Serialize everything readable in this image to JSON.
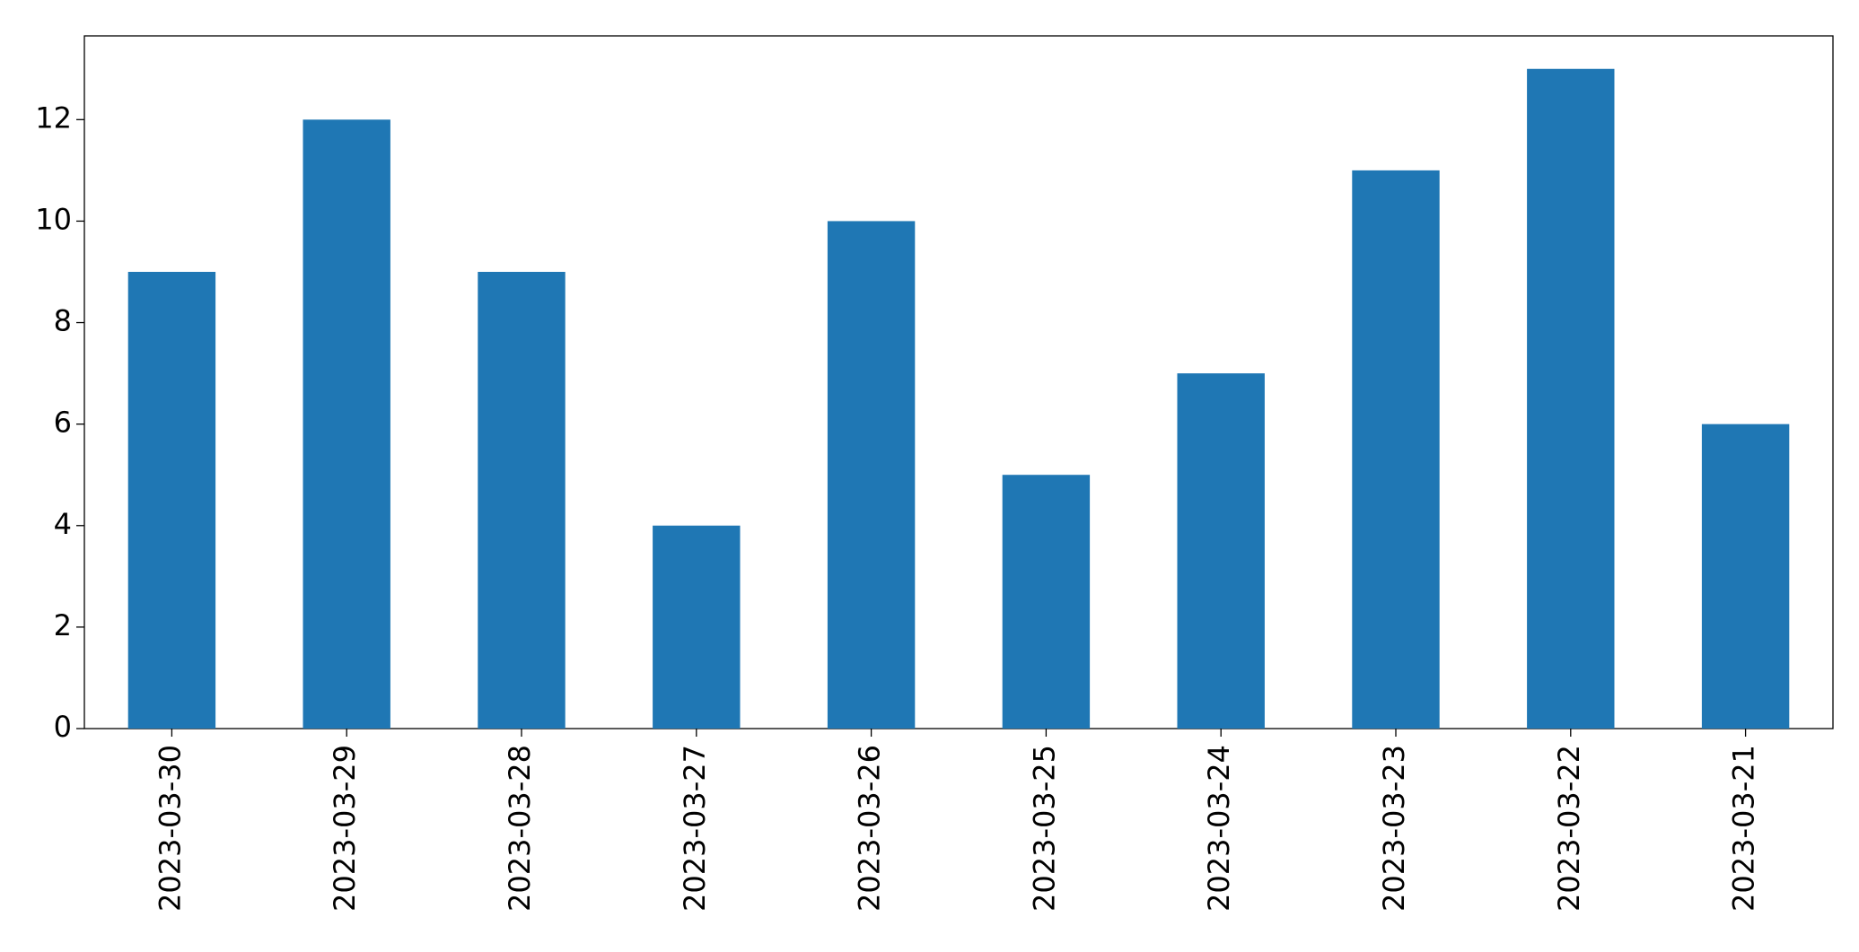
{
  "chart_data": {
    "type": "bar",
    "categories": [
      "2023-03-30",
      "2023-03-29",
      "2023-03-28",
      "2023-03-27",
      "2023-03-26",
      "2023-03-25",
      "2023-03-24",
      "2023-03-23",
      "2023-03-22",
      "2023-03-21"
    ],
    "values": [
      9,
      12,
      9,
      4,
      10,
      5,
      7,
      11,
      13,
      6
    ],
    "color": "#1f77b4",
    "ylim": [
      0,
      13.65
    ],
    "yticks": [
      0,
      2,
      4,
      6,
      8,
      10,
      12
    ],
    "grid": false
  }
}
